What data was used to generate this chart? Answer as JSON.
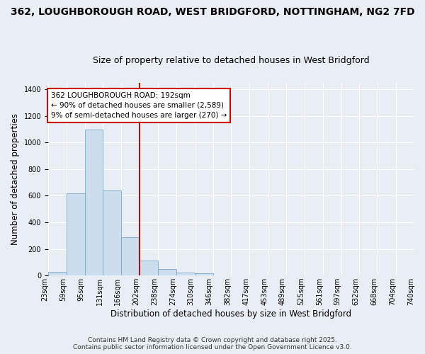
{
  "title_line1": "362, LOUGHBOROUGH ROAD, WEST BRIDGFORD, NOTTINGHAM, NG2 7FD",
  "title_line2": "Size of property relative to detached houses in West Bridgford",
  "xlabel": "Distribution of detached houses by size in West Bridgford",
  "ylabel": "Number of detached properties",
  "bin_labels": [
    "23sqm",
    "59sqm",
    "95sqm",
    "131sqm",
    "166sqm",
    "202sqm",
    "238sqm",
    "274sqm",
    "310sqm",
    "346sqm",
    "382sqm",
    "417sqm",
    "453sqm",
    "489sqm",
    "525sqm",
    "561sqm",
    "597sqm",
    "632sqm",
    "668sqm",
    "704sqm",
    "740sqm"
  ],
  "bar_values": [
    30,
    620,
    1100,
    640,
    290,
    115,
    50,
    20,
    15,
    0,
    0,
    0,
    0,
    0,
    0,
    0,
    0,
    0,
    0,
    0
  ],
  "bar_color": "#ccdded",
  "bar_edge_color": "#7aaac8",
  "annotation_text": "362 LOUGHBOROUGH ROAD: 192sqm\n← 90% of detached houses are smaller (2,589)\n9% of semi-detached houses are larger (270) →",
  "vline_bin_index": 5,
  "vline_color": "#cc0000",
  "annotation_box_facecolor": "#ffffff",
  "annotation_box_edgecolor": "#cc0000",
  "background_color": "#e8eef4",
  "ylim": [
    0,
    1450
  ],
  "yticks": [
    0,
    200,
    400,
    600,
    800,
    1000,
    1200,
    1400
  ],
  "grid_color": "#ffffff",
  "title_fontsize": 10,
  "subtitle_fontsize": 9,
  "axis_label_fontsize": 8.5,
  "tick_fontsize": 7,
  "annotation_fontsize": 7.5,
  "footer_line1": "Contains HM Land Registry data © Crown copyright and database right 2025.",
  "footer_line2": "Contains public sector information licensed under the Open Government Licence v3.0.",
  "footer_fontsize": 6.5
}
